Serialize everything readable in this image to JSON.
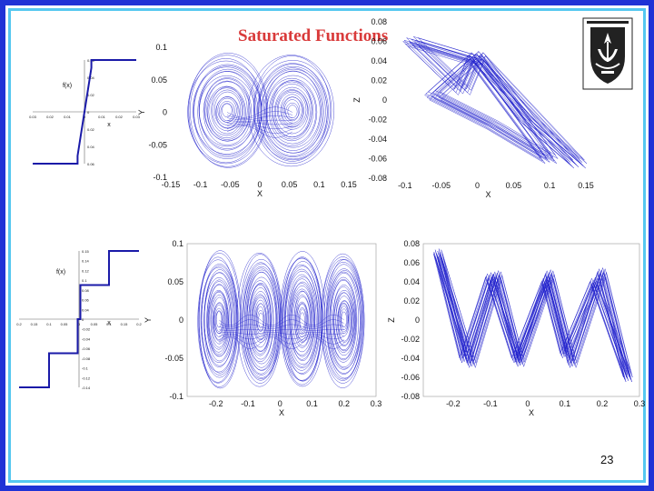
{
  "slide": {
    "title": "Saturated Functions",
    "page_number": "23"
  },
  "colors": {
    "frame_outer": "#1f33d6",
    "frame_inner": "#56c8f0",
    "title": "#d93a3a",
    "trajectory": "#2222cc"
  },
  "logo": {
    "icon": "university-crest-icon"
  },
  "chart_data": [
    {
      "id": "sat1",
      "type": "line",
      "ylabel": "f(x)",
      "xlabel": "x",
      "xticks": [
        "0.03",
        "0.02",
        "0.01",
        "0",
        "0.01",
        "0.02",
        "0.03"
      ],
      "yticks": [
        "0.06",
        "0.04",
        "0.02",
        "0",
        "0.02",
        "0.04",
        "0.06"
      ],
      "x": [
        -0.03,
        -0.004,
        -0.004,
        0.004,
        0.004,
        0.03
      ],
      "y": [
        -1,
        -1,
        -0.85,
        0.85,
        1,
        1
      ]
    },
    {
      "id": "xy1",
      "type": "line",
      "xlabel": "X",
      "ylabel": "Y",
      "xticks": [
        "-0.15",
        "-0.1",
        "-0.05",
        "0",
        "0.05",
        "0.1",
        "0.15"
      ],
      "yticks": [
        "0.1",
        "0.05",
        "0",
        "-0.05",
        "-0.1"
      ],
      "xlim": [
        -0.15,
        0.15
      ],
      "ylim": [
        -0.1,
        0.1
      ],
      "scrolls": [
        {
          "cx": -0.055,
          "cy": 0.002
        },
        {
          "cx": 0.055,
          "cy": 0.002
        }
      ]
    },
    {
      "id": "xz1",
      "type": "line",
      "xlabel": "X",
      "ylabel": "Z",
      "xticks": [
        "-0.1",
        "-0.05",
        "0",
        "0.05",
        "0.1",
        "0.15"
      ],
      "yticks": [
        "0.08",
        "0.06",
        "0.04",
        "0.02",
        "0",
        "-0.02",
        "-0.04",
        "-0.06",
        "-0.08"
      ],
      "xlim": [
        -0.12,
        0.15
      ],
      "ylim": [
        -0.08,
        0.08
      ],
      "path": [
        [
          -0.09,
          0.06
        ],
        [
          -0.02,
          0.01
        ],
        [
          0.0,
          0.045
        ],
        [
          0.07,
          -0.02
        ],
        [
          0.14,
          -0.065
        ],
        [
          0.0,
          0.045
        ],
        [
          -0.06,
          0.005
        ],
        [
          0.02,
          -0.025
        ],
        [
          0.1,
          -0.06
        ],
        [
          0.0,
          0.04
        ],
        [
          -0.09,
          0.06
        ]
      ]
    },
    {
      "id": "sat2",
      "type": "line",
      "ylabel": "f(x)",
      "xlabel": "x",
      "xticks": [
        "0.2",
        "0.15",
        "0.1",
        "0.05",
        "0",
        "0.05",
        "0.1",
        "0.15",
        "0.2"
      ],
      "yticks": [
        "0.15",
        "0.14",
        "0.12",
        "0.1",
        "0.08",
        "0.06",
        "0.04",
        "0",
        "-0.02",
        "-0.04",
        "-0.06",
        "-0.08",
        "-0.1",
        "-0.12",
        "-0.14"
      ],
      "x": [
        -0.22,
        -0.11,
        -0.11,
        -0.005,
        -0.005,
        0.005,
        0.005,
        0.11,
        0.11,
        0.22
      ],
      "y": [
        -0.16,
        -0.16,
        -0.08,
        -0.08,
        0,
        0,
        0.08,
        0.08,
        0.16,
        0.16
      ]
    },
    {
      "id": "xy2",
      "type": "line",
      "xlabel": "X",
      "ylabel": "Y",
      "xticks": [
        "-0.2",
        "-0.1",
        "0",
        "0.1",
        "0.2",
        "0.3"
      ],
      "yticks": [
        "0.1",
        "0.05",
        "0",
        "-0.05",
        "-0.1"
      ],
      "xlim": [
        -0.29,
        0.3
      ],
      "ylim": [
        -0.1,
        0.1
      ],
      "scrolls": [
        {
          "cx": -0.19,
          "cy": 0.0
        },
        {
          "cx": -0.06,
          "cy": 0.0
        },
        {
          "cx": 0.07,
          "cy": 0.0
        },
        {
          "cx": 0.2,
          "cy": 0.0
        }
      ]
    },
    {
      "id": "xz2",
      "type": "line",
      "xlabel": "X",
      "ylabel": "Z",
      "xticks": [
        "-0.2",
        "-0.1",
        "0",
        "0.1",
        "0.2",
        "0.3"
      ],
      "yticks": [
        "0.08",
        "0.06",
        "0.04",
        "0.02",
        "0",
        "-0.02",
        "-0.04",
        "-0.06",
        "-0.08"
      ],
      "xlim": [
        -0.28,
        0.3
      ],
      "ylim": [
        -0.08,
        0.08
      ],
      "path": [
        [
          -0.24,
          0.07
        ],
        [
          -0.15,
          -0.045
        ],
        [
          -0.08,
          0.047
        ],
        [
          -0.02,
          -0.044
        ],
        [
          0.06,
          0.048
        ],
        [
          0.12,
          -0.045
        ],
        [
          0.2,
          0.05
        ],
        [
          0.27,
          -0.06
        ],
        [
          0.18,
          0.04
        ],
        [
          0.1,
          -0.035
        ],
        [
          0.05,
          0.04
        ],
        [
          -0.03,
          -0.04
        ],
        [
          -0.1,
          0.045
        ],
        [
          -0.17,
          -0.04
        ],
        [
          -0.24,
          0.07
        ]
      ]
    }
  ]
}
